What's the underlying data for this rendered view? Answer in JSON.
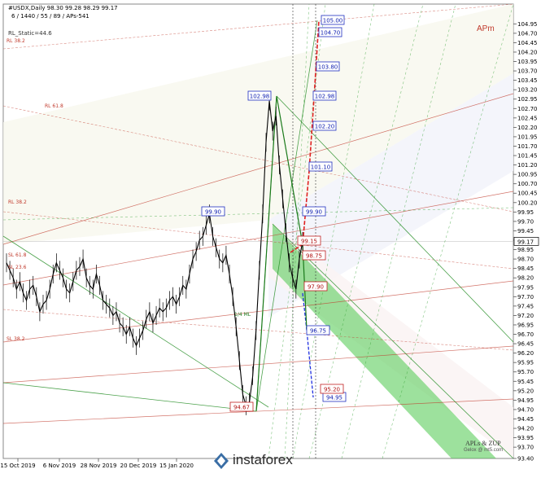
{
  "header": {
    "symbol_line": "#USDX,Daily  98.30 99.28 98.29 99.17",
    "settings_line": "6 / 1440 / 55 / 89 / APs-541",
    "static_label": "RL_Static=44.6"
  },
  "corner_label": "APm",
  "signature_lines": [
    "APLs & ZUP",
    "Gelox @ mt5.com"
  ],
  "watermark": "instaforex",
  "chart_data": {
    "type": "line",
    "title": "",
    "xlabel": "",
    "ylabel": "",
    "ylim": [
      93.4,
      105.2
    ],
    "y_ticks": [
      "104.95",
      "104.70",
      "104.45",
      "104.20",
      "103.95",
      "103.70",
      "103.45",
      "103.20",
      "102.95",
      "102.70",
      "102.45",
      "102.20",
      "101.95",
      "101.70",
      "101.45",
      "101.20",
      "100.95",
      "100.70",
      "100.45",
      "100.20",
      "99.95",
      "99.70",
      "99.45",
      "99.20",
      "98.95",
      "98.70",
      "98.45",
      "98.20",
      "97.95",
      "97.70",
      "97.45",
      "97.20",
      "96.95",
      "96.70",
      "96.45",
      "96.20",
      "95.95",
      "95.70",
      "95.45",
      "95.20",
      "94.95",
      "94.70",
      "94.45",
      "94.20",
      "93.95",
      "93.70",
      "93.40"
    ],
    "x_ticks": [
      "15 Oct 2019",
      "6 Nov 2019",
      "28 Nov 2019",
      "20 Dec 2019",
      "15 Jan 2020"
    ],
    "current_price": "99.17",
    "series": [
      {
        "values": [
          98.6,
          98.4,
          98.2,
          97.9,
          98.1,
          97.8,
          97.6,
          97.9,
          98.0,
          97.7,
          97.3,
          97.5,
          97.6,
          97.9,
          98.3,
          98.6,
          98.4,
          98.2,
          97.9,
          97.8,
          98.1,
          98.4,
          98.5,
          98.7,
          98.2,
          98.0,
          97.9,
          98.3,
          98.0,
          97.6,
          97.5,
          97.4,
          97.2,
          97.3,
          97.0,
          96.9,
          96.7,
          96.9,
          96.6,
          96.4,
          96.6,
          96.8,
          97.1,
          97.3,
          97.0,
          97.2,
          97.4,
          97.3,
          97.4,
          97.6,
          97.7,
          97.5,
          97.7,
          98.0,
          97.9,
          98.3,
          98.7,
          98.9,
          99.2,
          99.3,
          99.6,
          99.9,
          99.3,
          99.0,
          98.7,
          98.6,
          98.8,
          98.3,
          97.7,
          96.9,
          96.0,
          95.1,
          94.8,
          94.9,
          95.6,
          96.8,
          98.4,
          99.9,
          101.8,
          102.9,
          102.1,
          102.5,
          101.2,
          100.3,
          99.4,
          98.6,
          98.2,
          97.9,
          98.7,
          99.17
        ]
      }
    ],
    "price_labels_blue": [
      "105.00",
      "104.70",
      "103.80",
      "102.98",
      "102.20",
      "101.10",
      "99.90",
      "99.90",
      "102.98",
      "96.75",
      "94.95"
    ],
    "price_labels_red": [
      "99.15",
      "98.75",
      "97.90",
      "95.20",
      "94.67"
    ],
    "level_labels": [
      "RL 38.2",
      "RL 61.8",
      "RL 38.2",
      "SL 61.8",
      "SL 23.6",
      "SL 38.2",
      "1/4 ML"
    ]
  }
}
